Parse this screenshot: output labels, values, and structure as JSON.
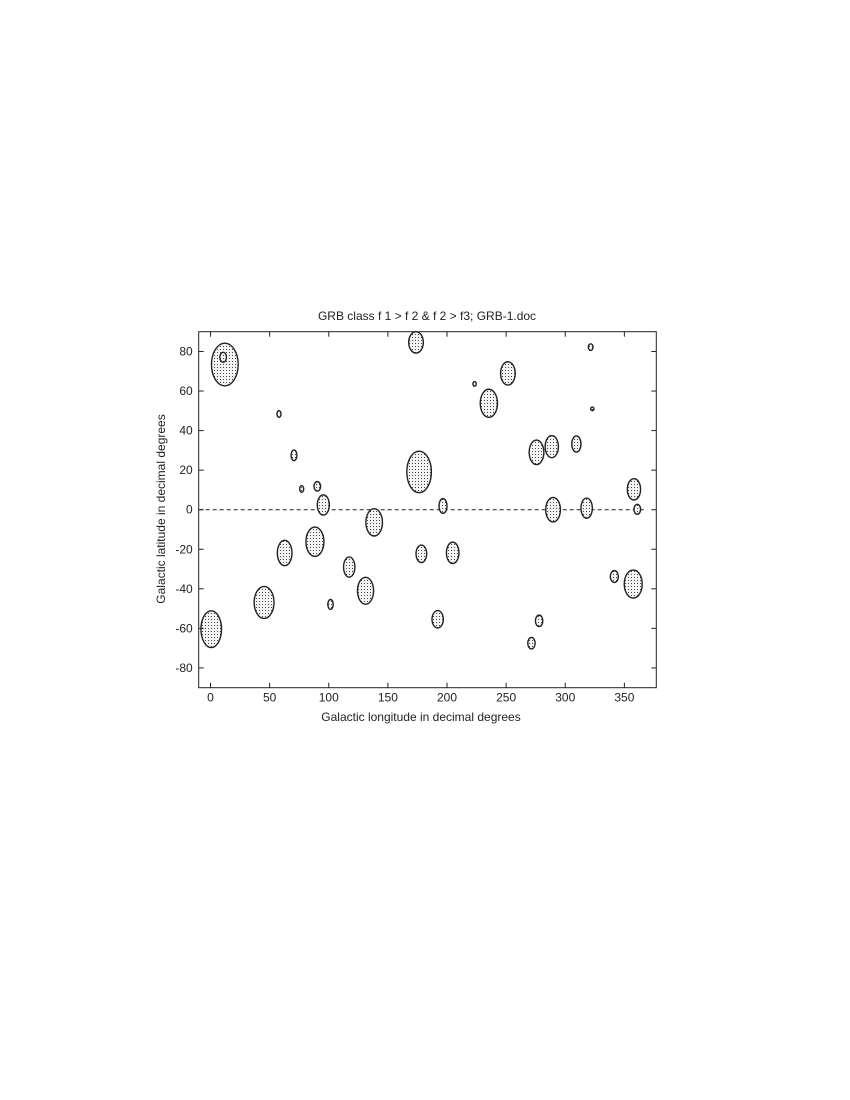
{
  "chart_data": {
    "type": "scatter",
    "title": "GRB class f 1 > f 2 & f 2 > f3; GRB-1.doc",
    "xlabel": "Galactic longitude in decimal degrees",
    "ylabel": "Galactic latitude in decimal degrees",
    "xlim": [
      -10,
      377
    ],
    "ylim": [
      -90,
      90
    ],
    "xticks": [
      0,
      50,
      100,
      150,
      200,
      250,
      300,
      350
    ],
    "yticks": [
      -80,
      -60,
      -40,
      -20,
      0,
      20,
      40,
      60,
      80
    ],
    "grid": false,
    "reference_line": {
      "y": 0,
      "style": "dashed",
      "x_range": [
        -10,
        368
      ]
    },
    "marker": "dotted ellipse",
    "points": [
      {
        "lon": 12.1,
        "lat": 73.4,
        "rlon": 11.3,
        "rlat": 10.8
      },
      {
        "lon": 10.7,
        "lat": 77.1,
        "rlon": 2.8,
        "rlat": 2.5
      },
      {
        "lon": 173.8,
        "lat": 84.6,
        "rlon": 6.2,
        "rlat": 5.4
      },
      {
        "lon": 321.5,
        "lat": 82.2,
        "rlon": 2.0,
        "rlat": 1.7
      },
      {
        "lon": 223.3,
        "lat": 63.6,
        "rlon": 1.4,
        "rlat": 1.2
      },
      {
        "lon": 251.5,
        "lat": 68.9,
        "rlon": 6.2,
        "rlat": 5.9
      },
      {
        "lon": 322.9,
        "lat": 51.0,
        "rlon": 1.4,
        "rlat": 0.9
      },
      {
        "lon": 235.4,
        "lat": 53.8,
        "rlon": 7.3,
        "rlat": 7.1
      },
      {
        "lon": 57.9,
        "lat": 48.4,
        "rlon": 1.7,
        "rlat": 1.7
      },
      {
        "lon": 70.6,
        "lat": 27.5,
        "rlon": 2.5,
        "rlat": 2.7
      },
      {
        "lon": 275.7,
        "lat": 29.0,
        "rlon": 6.2,
        "rlat": 6.2
      },
      {
        "lon": 288.6,
        "lat": 31.9,
        "rlon": 5.6,
        "rlat": 5.6
      },
      {
        "lon": 309.4,
        "lat": 33.2,
        "rlon": 3.9,
        "rlat": 4.1
      },
      {
        "lon": 176.4,
        "lat": 19.1,
        "rlon": 10.4,
        "rlat": 10.5
      },
      {
        "lon": 77.1,
        "lat": 10.5,
        "rlon": 1.7,
        "rlat": 1.7
      },
      {
        "lon": 90.3,
        "lat": 11.8,
        "rlon": 2.8,
        "rlat": 2.4
      },
      {
        "lon": 95.4,
        "lat": 2.4,
        "rlon": 5.1,
        "rlat": 5.1
      },
      {
        "lon": 196.6,
        "lat": 1.9,
        "rlon": 3.4,
        "rlat": 3.7
      },
      {
        "lon": 289.7,
        "lat": 0.0,
        "rlon": 6.2,
        "rlat": 6.2
      },
      {
        "lon": 318.1,
        "lat": 0.8,
        "rlon": 4.8,
        "rlat": 5.1
      },
      {
        "lon": 358.1,
        "lat": 10.3,
        "rlon": 5.6,
        "rlat": 5.4
      },
      {
        "lon": 360.9,
        "lat": 0.2,
        "rlon": 2.8,
        "rlat": 2.5
      },
      {
        "lon": 138.4,
        "lat": -6.4,
        "rlon": 7.0,
        "rlat": 6.9
      },
      {
        "lon": 88.3,
        "lat": -16.2,
        "rlon": 7.6,
        "rlat": 7.4
      },
      {
        "lon": 62.7,
        "lat": -21.9,
        "rlon": 6.2,
        "rlat": 6.4
      },
      {
        "lon": 178.3,
        "lat": -22.3,
        "rlon": 4.5,
        "rlat": 4.4
      },
      {
        "lon": 204.8,
        "lat": -21.8,
        "rlon": 5.3,
        "rlat": 5.4
      },
      {
        "lon": 117.3,
        "lat": -29.0,
        "rlon": 4.8,
        "rlat": 5.1
      },
      {
        "lon": 131.1,
        "lat": -41.0,
        "rlon": 6.8,
        "rlat": 6.8
      },
      {
        "lon": 45.3,
        "lat": -46.9,
        "rlon": 8.4,
        "rlat": 8.1
      },
      {
        "lon": 101.5,
        "lat": -47.9,
        "rlon": 2.3,
        "rlat": 2.5
      },
      {
        "lon": 341.5,
        "lat": -33.8,
        "rlon": 3.4,
        "rlat": 3.0
      },
      {
        "lon": 357.5,
        "lat": -37.6,
        "rlon": 7.6,
        "rlat": 7.1
      },
      {
        "lon": 192.1,
        "lat": -55.4,
        "rlon": 4.8,
        "rlat": 4.4
      },
      {
        "lon": 277.9,
        "lat": -56.2,
        "rlon": 3.1,
        "rlat": 2.9
      },
      {
        "lon": 271.4,
        "lat": -67.5,
        "rlon": 3.1,
        "rlat": 2.9
      },
      {
        "lon": 0.6,
        "lat": -60.4,
        "rlon": 8.7,
        "rlat": 9.3
      }
    ]
  }
}
